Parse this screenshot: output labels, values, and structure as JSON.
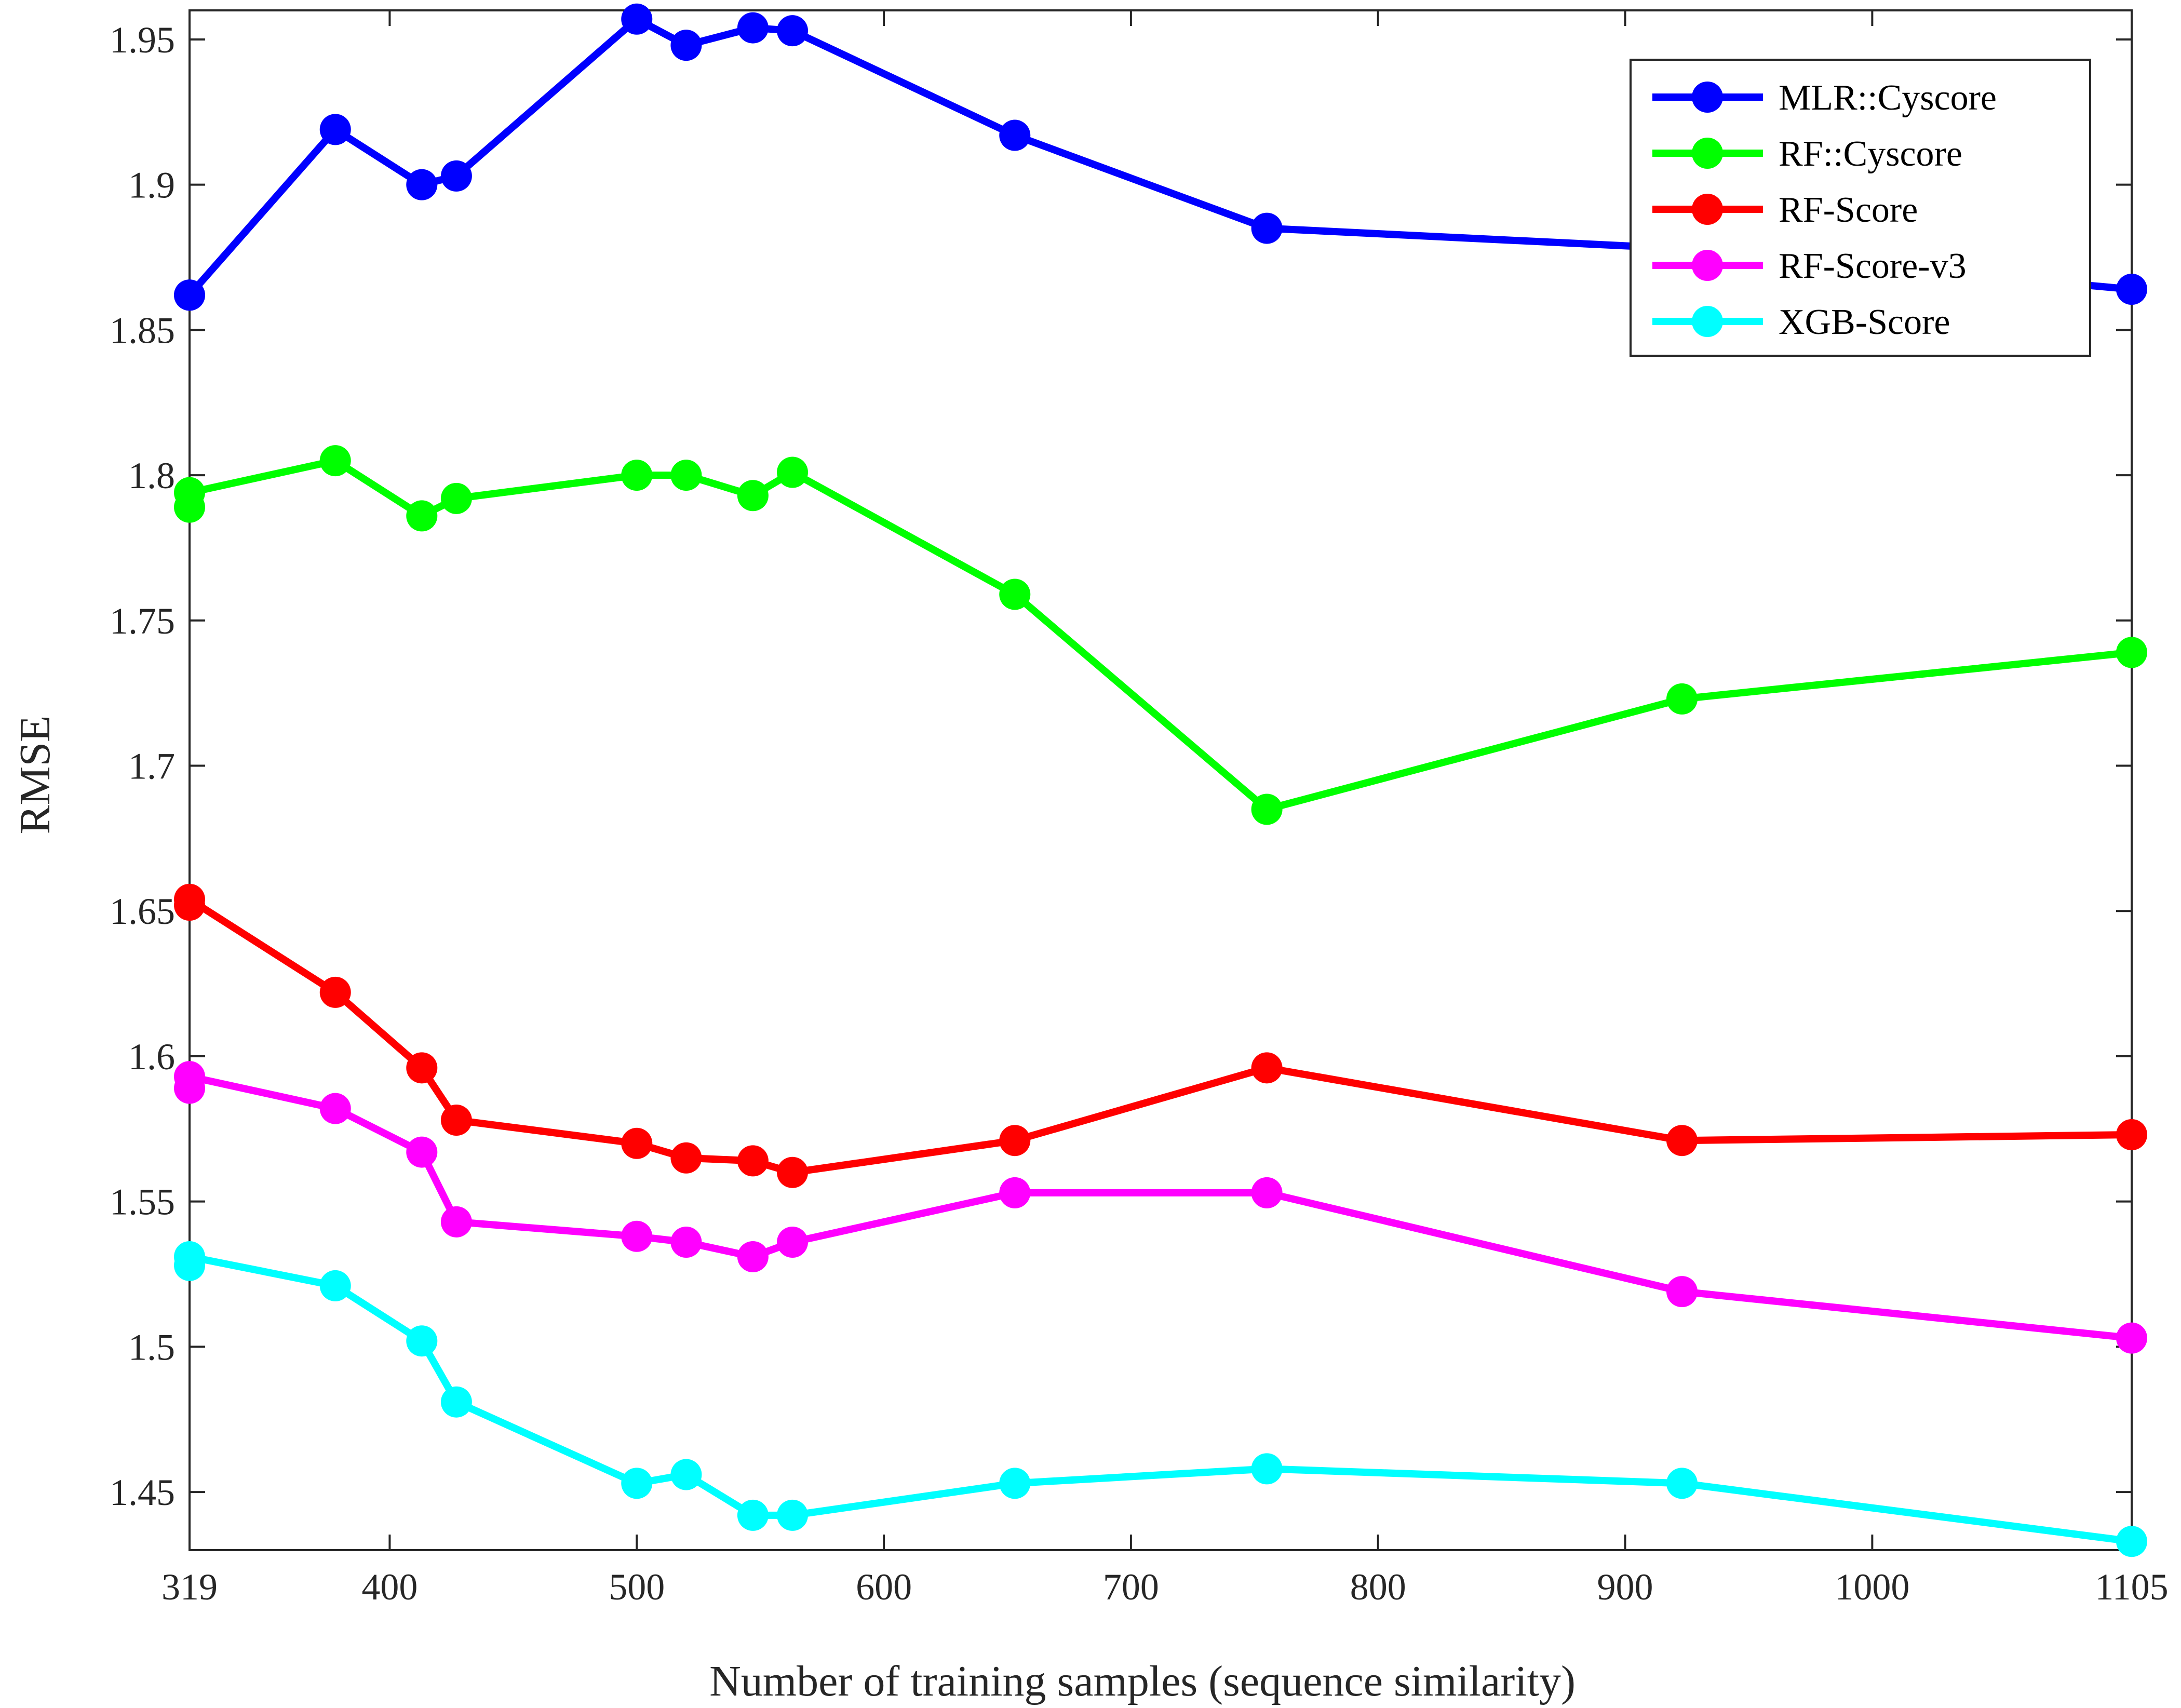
{
  "chart_data": {
    "type": "line",
    "title": "",
    "xlabel": "Number of training samples (sequence similarity)",
    "ylabel": "RMSE",
    "xlim": [
      319,
      1105
    ],
    "ylim": [
      1.43,
      1.96
    ],
    "xticks": [
      319,
      400,
      500,
      600,
      700,
      800,
      900,
      1000,
      1105
    ],
    "yticks": [
      1.45,
      1.5,
      1.55,
      1.6,
      1.65,
      1.7,
      1.75,
      1.8,
      1.85,
      1.9,
      1.95
    ],
    "x": [
      319,
      319,
      378,
      413,
      427,
      500,
      520,
      547,
      563,
      653,
      755,
      923,
      1105
    ],
    "grid": false,
    "legend_position": "top-right",
    "series": [
      {
        "name": "MLR::Cyscore",
        "color": "#0000ff",
        "values": [
          1.862,
          1.862,
          1.919,
          1.9,
          1.903,
          1.957,
          1.948,
          1.954,
          1.953,
          1.917,
          1.885,
          1.878,
          1.864
        ]
      },
      {
        "name": "RF::Cyscore",
        "color": "#00ff00",
        "values": [
          1.789,
          1.794,
          1.805,
          1.786,
          1.792,
          1.8,
          1.8,
          1.793,
          1.801,
          1.759,
          1.685,
          1.723,
          1.739
        ]
      },
      {
        "name": "RF-Score",
        "color": "#ff0000",
        "values": [
          1.652,
          1.654,
          1.622,
          1.596,
          1.578,
          1.57,
          1.565,
          1.564,
          1.56,
          1.571,
          1.596,
          1.571,
          1.573
        ]
      },
      {
        "name": "RF-Score-v3",
        "color": "#ff00ff",
        "values": [
          1.589,
          1.593,
          1.582,
          1.567,
          1.543,
          1.538,
          1.536,
          1.531,
          1.536,
          1.553,
          1.553,
          1.519,
          1.503
        ]
      },
      {
        "name": "XGB-Score",
        "color": "#00ffff",
        "values": [
          1.528,
          1.531,
          1.521,
          1.502,
          1.481,
          1.453,
          1.456,
          1.442,
          1.442,
          1.453,
          1.458,
          1.453,
          1.433
        ]
      }
    ]
  }
}
